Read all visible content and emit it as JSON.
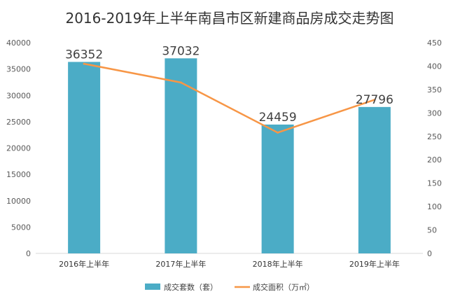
{
  "chart_data": {
    "type": "bar",
    "title": "2016-2019年上半年南昌市区新建商品房成交走势图",
    "categories": [
      "2016年上半年",
      "2017年上半年",
      "2018年上半年",
      "2019年上半年"
    ],
    "series": [
      {
        "name": "成交套数（套）",
        "type": "bar",
        "axis": "left",
        "color": "#4BACC6",
        "values": [
          36352,
          37032,
          24459,
          27796
        ],
        "data_labels": [
          "36352",
          "37032",
          "24459",
          "27796"
        ],
        "show_labels": [
          true,
          true,
          true,
          true
        ]
      },
      {
        "name": "成交面积（万㎡）",
        "type": "line",
        "axis": "right",
        "color": "#F79646",
        "values": [
          405,
          365,
          258,
          328
        ]
      }
    ],
    "y_left": {
      "min": 0,
      "max": 40000,
      "ticks": [
        "0",
        "5000",
        "10000",
        "15000",
        "20000",
        "25000",
        "30000",
        "35000",
        "40000"
      ]
    },
    "y_right": {
      "min": 0,
      "max": 450,
      "ticks": [
        "0",
        "50",
        "100",
        "150",
        "200",
        "250",
        "300",
        "350",
        "400",
        "450"
      ]
    },
    "grid": false,
    "legend_position": "bottom"
  }
}
